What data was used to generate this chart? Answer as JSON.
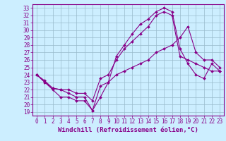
{
  "xlabel": "Windchill (Refroidissement éolien,°C)",
  "ylabel": "",
  "bg_color": "#cceeff",
  "line_color": "#880088",
  "xlim": [
    -0.5,
    23.5
  ],
  "ylim": [
    18.5,
    33.5
  ],
  "xticks": [
    0,
    1,
    2,
    3,
    4,
    5,
    6,
    7,
    8,
    9,
    10,
    11,
    12,
    13,
    14,
    15,
    16,
    17,
    18,
    19,
    20,
    21,
    22,
    23
  ],
  "yticks": [
    19,
    20,
    21,
    22,
    23,
    24,
    25,
    26,
    27,
    28,
    29,
    30,
    31,
    32,
    33
  ],
  "line1_x": [
    0,
    1,
    2,
    3,
    4,
    5,
    6,
    7,
    8,
    9,
    10,
    11,
    12,
    13,
    14,
    15,
    16,
    17,
    18,
    19,
    20,
    21,
    22,
    23
  ],
  "line1_y": [
    24.0,
    23.0,
    22.0,
    21.0,
    21.0,
    20.5,
    20.5,
    19.2,
    22.5,
    23.0,
    24.0,
    24.5,
    25.0,
    25.5,
    26.0,
    27.0,
    27.5,
    28.0,
    29.0,
    30.5,
    27.0,
    26.0,
    26.0,
    25.0
  ],
  "line2_x": [
    0,
    1,
    2,
    3,
    4,
    5,
    6,
    7,
    8,
    9,
    10,
    11,
    12,
    13,
    14,
    15,
    16,
    17,
    18,
    19,
    20,
    21,
    22,
    23
  ],
  "line2_y": [
    24.0,
    23.2,
    22.2,
    22.0,
    22.0,
    21.5,
    21.5,
    20.5,
    23.5,
    24.0,
    26.0,
    27.5,
    28.5,
    29.5,
    30.5,
    32.0,
    32.5,
    32.0,
    26.5,
    26.0,
    25.5,
    25.0,
    24.5,
    24.5
  ],
  "line3_x": [
    0,
    1,
    2,
    3,
    4,
    5,
    6,
    7,
    8,
    9,
    10,
    11,
    12,
    13,
    14,
    15,
    16,
    17,
    18,
    19,
    20,
    21,
    22,
    23
  ],
  "line3_y": [
    24.0,
    23.0,
    22.2,
    22.0,
    21.5,
    21.0,
    21.0,
    19.2,
    21.0,
    23.0,
    26.5,
    28.0,
    29.5,
    30.8,
    31.5,
    32.5,
    33.0,
    32.5,
    27.5,
    25.5,
    24.0,
    23.5,
    25.5,
    24.5
  ],
  "grid_color": "#99bbcc",
  "tick_fontsize": 5.5,
  "xlabel_fontsize": 6.5,
  "markersize": 2.0,
  "linewidth": 0.8
}
